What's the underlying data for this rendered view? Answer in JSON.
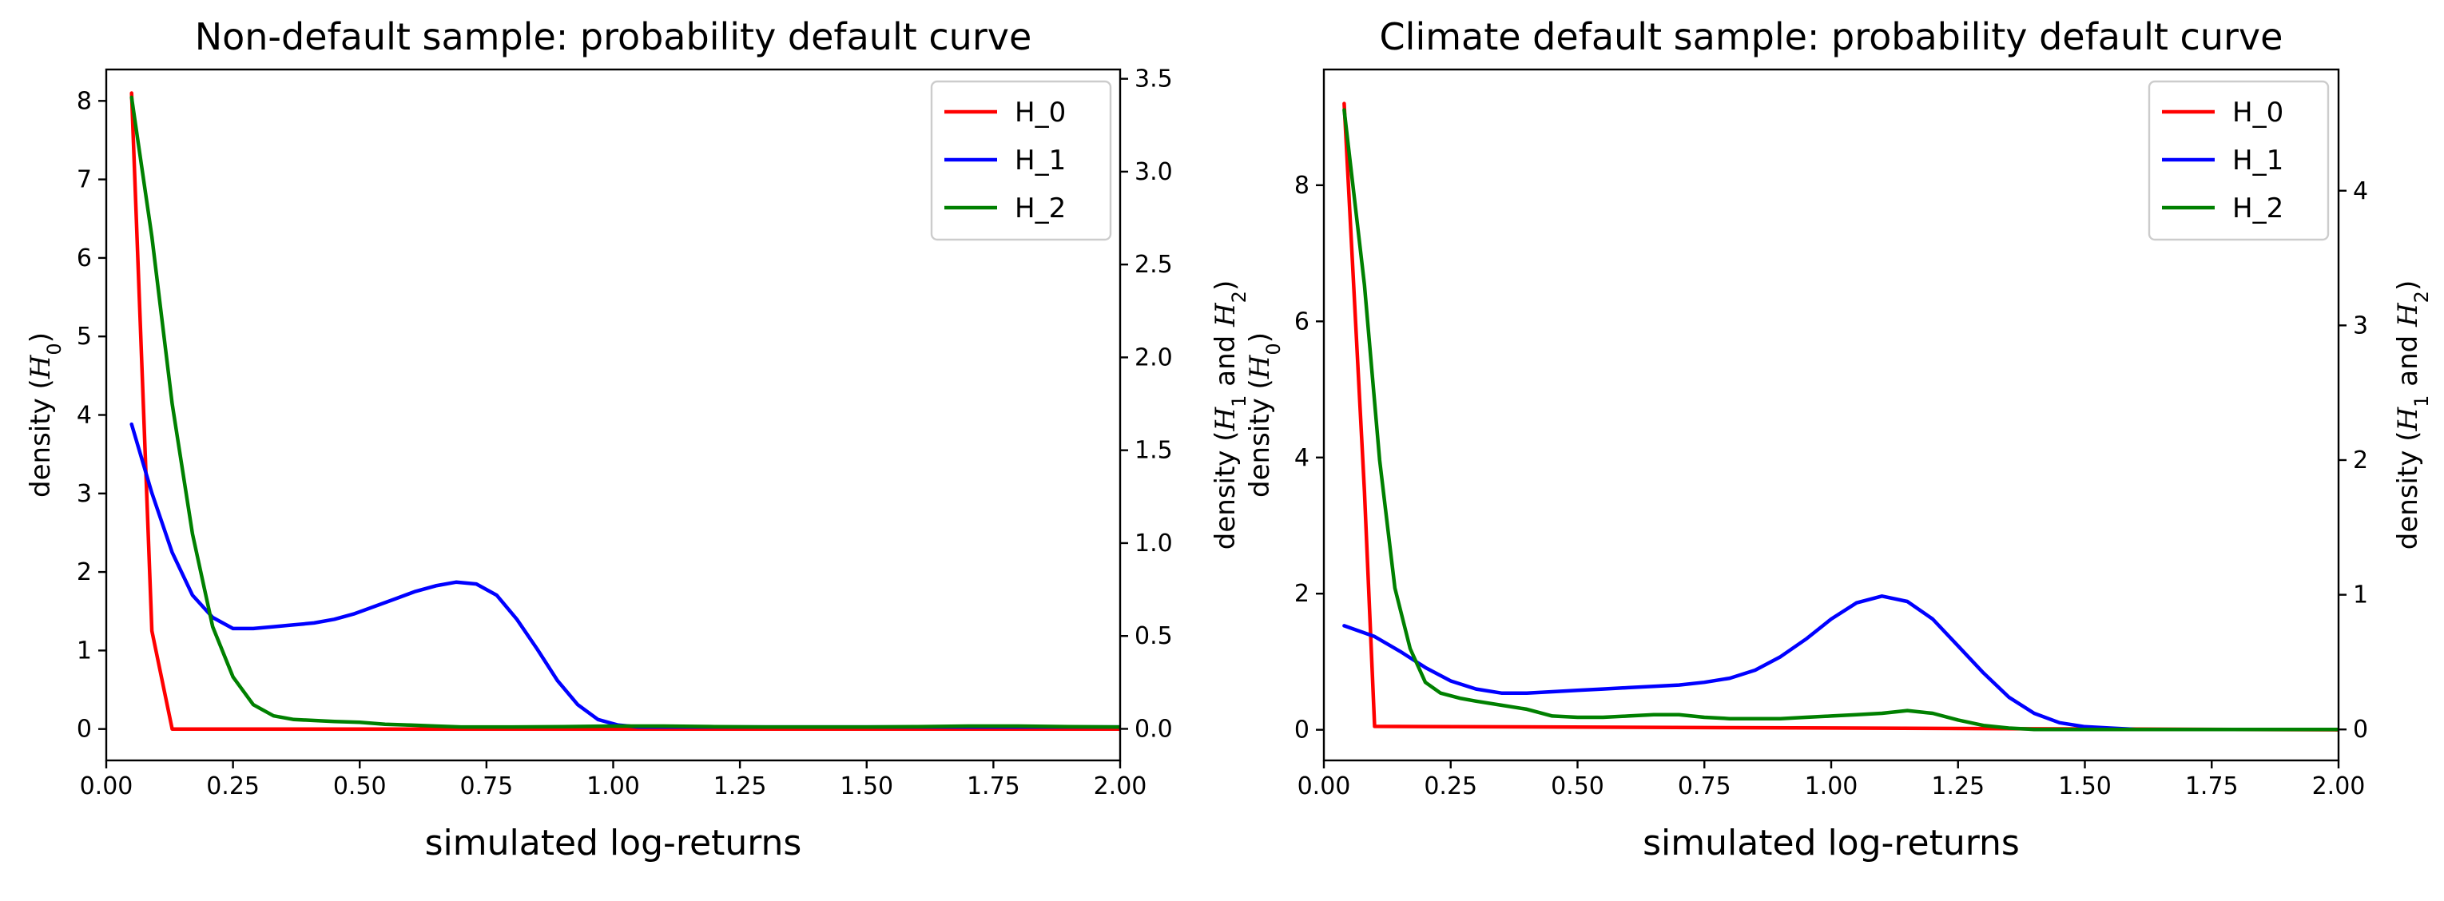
{
  "chart_data": [
    {
      "type": "line",
      "title": "Non-default sample: probability default curve",
      "xlabel": "simulated log-returns",
      "ylabel_left": "density (H_0)",
      "ylabel_right": "density (H_1 and H_2)",
      "xlim": [
        0,
        2
      ],
      "ylim_left": [
        -0.4,
        8.4
      ],
      "ylim_right": [
        -0.17,
        3.55
      ],
      "xticks": [
        0,
        0.25,
        0.5,
        0.75,
        1.0,
        1.25,
        1.5,
        1.75,
        2.0
      ],
      "xtick_labels": [
        "0.00",
        "0.25",
        "0.50",
        "0.75",
        "1.00",
        "1.25",
        "1.50",
        "1.75",
        "2.00"
      ],
      "yticks_left": [
        0,
        1,
        2,
        3,
        4,
        5,
        6,
        7,
        8
      ],
      "ytick_labels_left": [
        "0",
        "1",
        "2",
        "3",
        "4",
        "5",
        "6",
        "7",
        "8"
      ],
      "yticks_right": [
        0,
        0.5,
        1.0,
        1.5,
        2.0,
        2.5,
        3.0,
        3.5
      ],
      "ytick_labels_right": [
        "0.0",
        "0.5",
        "1.0",
        "1.5",
        "2.0",
        "2.5",
        "3.0",
        "3.5"
      ],
      "legend_position": "top-right",
      "series": [
        {
          "name": "H_0",
          "axis": "left",
          "color": "#ff0000",
          "x": [
            0.05,
            0.09,
            0.13,
            2.0
          ],
          "y": [
            8.1,
            1.25,
            0.0,
            0.0
          ]
        },
        {
          "name": "H_1",
          "axis": "right",
          "color": "#0000ff",
          "x": [
            0.05,
            0.09,
            0.13,
            0.17,
            0.21,
            0.25,
            0.29,
            0.33,
            0.37,
            0.41,
            0.45,
            0.49,
            0.53,
            0.57,
            0.61,
            0.65,
            0.69,
            0.73,
            0.77,
            0.81,
            0.85,
            0.89,
            0.93,
            0.97,
            1.01,
            1.05,
            1.1,
            1.2,
            1.3,
            1.4,
            1.5,
            1.6,
            1.7,
            1.8,
            1.9,
            2.0
          ],
          "y": [
            1.64,
            1.27,
            0.95,
            0.72,
            0.6,
            0.54,
            0.54,
            0.55,
            0.56,
            0.57,
            0.59,
            0.62,
            0.66,
            0.7,
            0.74,
            0.77,
            0.79,
            0.78,
            0.72,
            0.59,
            0.43,
            0.26,
            0.13,
            0.05,
            0.02,
            0.01,
            0.01,
            0.01,
            0.01,
            0.01,
            0.01,
            0.01,
            0.01,
            0.01,
            0.01,
            0.01
          ]
        },
        {
          "name": "H_2",
          "axis": "right",
          "color": "#008000",
          "x": [
            0.05,
            0.09,
            0.13,
            0.17,
            0.21,
            0.25,
            0.29,
            0.33,
            0.37,
            0.41,
            0.45,
            0.5,
            0.55,
            0.6,
            0.65,
            0.7,
            0.75,
            0.8,
            0.9,
            1.0,
            1.1,
            1.2,
            1.3,
            1.4,
            1.5,
            1.6,
            1.7,
            1.8,
            1.9,
            2.0
          ],
          "y": [
            3.4,
            2.65,
            1.75,
            1.05,
            0.55,
            0.28,
            0.13,
            0.07,
            0.05,
            0.045,
            0.04,
            0.035,
            0.025,
            0.02,
            0.015,
            0.01,
            0.01,
            0.01,
            0.012,
            0.015,
            0.015,
            0.012,
            0.01,
            0.01,
            0.01,
            0.012,
            0.015,
            0.015,
            0.012,
            0.01
          ]
        }
      ]
    },
    {
      "type": "line",
      "title": "Climate default sample: probability default curve",
      "xlabel": "simulated log-returns",
      "ylabel_left": "density (H_0)",
      "ylabel_right": "density (H_1 and H_2)",
      "xlim": [
        0,
        2
      ],
      "ylim_left": [
        -0.45,
        9.7
      ],
      "ylim_right": [
        -0.23,
        4.9
      ],
      "xticks": [
        0,
        0.25,
        0.5,
        0.75,
        1.0,
        1.25,
        1.5,
        1.75,
        2.0
      ],
      "xtick_labels": [
        "0.00",
        "0.25",
        "0.50",
        "0.75",
        "1.00",
        "1.25",
        "1.50",
        "1.75",
        "2.00"
      ],
      "yticks_left": [
        0,
        2,
        4,
        6,
        8
      ],
      "ytick_labels_left": [
        "0",
        "2",
        "4",
        "6",
        "8"
      ],
      "yticks_right": [
        0,
        1,
        2,
        3,
        4
      ],
      "ytick_labels_right": [
        "0",
        "1",
        "2",
        "3",
        "4"
      ],
      "legend_position": "top-right",
      "series": [
        {
          "name": "H_0",
          "axis": "left",
          "color": "#ff0000",
          "x": [
            0.04,
            0.08,
            0.1,
            2.0
          ],
          "y": [
            9.2,
            3.5,
            0.05,
            0.0
          ]
        },
        {
          "name": "H_1",
          "axis": "right",
          "color": "#0000ff",
          "x": [
            0.04,
            0.1,
            0.15,
            0.2,
            0.25,
            0.3,
            0.35,
            0.4,
            0.45,
            0.5,
            0.55,
            0.6,
            0.65,
            0.7,
            0.75,
            0.8,
            0.85,
            0.9,
            0.95,
            1.0,
            1.05,
            1.1,
            1.15,
            1.2,
            1.25,
            1.3,
            1.35,
            1.4,
            1.45,
            1.5,
            1.55,
            1.6,
            1.7,
            1.8,
            1.9,
            2.0
          ],
          "y": [
            0.77,
            0.69,
            0.58,
            0.46,
            0.36,
            0.3,
            0.27,
            0.27,
            0.28,
            0.29,
            0.3,
            0.31,
            0.32,
            0.33,
            0.35,
            0.38,
            0.44,
            0.54,
            0.67,
            0.82,
            0.94,
            0.99,
            0.95,
            0.82,
            0.62,
            0.42,
            0.24,
            0.12,
            0.05,
            0.02,
            0.01,
            0.0,
            0.0,
            0.0,
            0.0,
            0.0
          ]
        },
        {
          "name": "H_2",
          "axis": "right",
          "color": "#008000",
          "x": [
            0.04,
            0.08,
            0.11,
            0.14,
            0.17,
            0.2,
            0.23,
            0.27,
            0.3,
            0.35,
            0.4,
            0.45,
            0.5,
            0.55,
            0.6,
            0.65,
            0.7,
            0.75,
            0.8,
            0.85,
            0.9,
            0.95,
            1.0,
            1.05,
            1.1,
            1.15,
            1.2,
            1.25,
            1.3,
            1.35,
            1.4,
            1.5,
            1.6,
            1.7,
            1.8,
            1.9,
            2.0
          ],
          "y": [
            4.6,
            3.3,
            2.0,
            1.05,
            0.6,
            0.35,
            0.27,
            0.23,
            0.21,
            0.18,
            0.15,
            0.1,
            0.09,
            0.09,
            0.1,
            0.11,
            0.11,
            0.09,
            0.08,
            0.08,
            0.08,
            0.09,
            0.1,
            0.11,
            0.12,
            0.14,
            0.12,
            0.07,
            0.03,
            0.01,
            0.0,
            0.0,
            0.0,
            0.0,
            0.0,
            0.0,
            0.0
          ]
        }
      ]
    }
  ]
}
